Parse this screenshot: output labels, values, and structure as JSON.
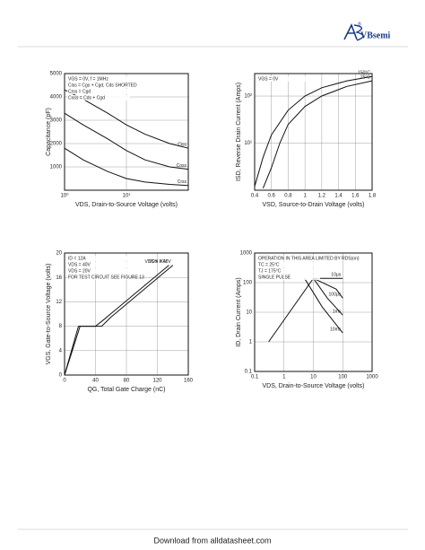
{
  "header": {
    "logo": "VBsemi",
    "mark": "®"
  },
  "footer": "Download from alldatasheet.com",
  "chart_data": [
    {
      "type": "line",
      "x_label": "VDS, Drain-to-Source Voltage (volts)",
      "y_label": "Capacitance (pF)",
      "xlog": true,
      "xlim": [
        1,
        100
      ],
      "xticks": [
        {
          "value": 1,
          "label": "10⁰"
        },
        {
          "value": 10,
          "label": "10¹"
        }
      ],
      "ylim": [
        0,
        5000
      ],
      "yticks": [
        1000,
        2000,
        3000,
        4000,
        5000
      ],
      "grid": true,
      "annotations": [
        "VGS = 0V, f = 1MHz",
        "Ciss = Cgs + Cgd, Cds SHORTED",
        "Crss = Cgd",
        "Coss = Cds + Cgd"
      ],
      "series": [
        {
          "name": "Ciss",
          "color": "#111",
          "x": [
            1,
            2,
            5,
            10,
            20,
            50,
            100
          ],
          "values": [
            4300,
            3900,
            3300,
            2800,
            2400,
            2000,
            1800
          ]
        },
        {
          "name": "Coss",
          "color": "#111",
          "x": [
            1,
            2,
            5,
            10,
            20,
            50,
            100
          ],
          "values": [
            3300,
            2800,
            2200,
            1700,
            1300,
            1000,
            900
          ]
        },
        {
          "name": "Crss",
          "color": "#111",
          "x": [
            1,
            2,
            5,
            10,
            20,
            50,
            100
          ],
          "values": [
            1800,
            1300,
            800,
            500,
            350,
            250,
            200
          ]
        }
      ]
    },
    {
      "type": "line",
      "x_label": "VSD, Source-to-Drain Voltage (volts)",
      "y_label": "ISD, Reverse Drain Current (Amps)",
      "xlim": [
        0.4,
        1.8
      ],
      "xticks": [
        0.4,
        0.6,
        0.8,
        1.0,
        1.2,
        1.4,
        1.6,
        1.8
      ],
      "ylog": true,
      "ylim": [
        1,
        300
      ],
      "yticks": [
        {
          "value": 10,
          "label": "10¹"
        },
        {
          "value": 100,
          "label": "10²"
        }
      ],
      "grid": true,
      "annotations": [
        "VGS = 0V"
      ],
      "series": [
        {
          "name": "150°C",
          "color": "#111",
          "x": [
            0.4,
            0.5,
            0.6,
            0.8,
            1.0,
            1.2,
            1.5,
            1.8
          ],
          "values": [
            1.2,
            5,
            15,
            50,
            100,
            150,
            210,
            260
          ]
        },
        {
          "name": "25°C",
          "color": "#111",
          "x": [
            0.5,
            0.6,
            0.7,
            0.8,
            1.0,
            1.2,
            1.5,
            1.8
          ],
          "values": [
            1.1,
            3,
            10,
            25,
            60,
            100,
            160,
            210
          ]
        }
      ]
    },
    {
      "type": "line",
      "x_label": "QG, Total Gate Charge (nC)",
      "y_label": "VGS, Gate-to-Source Voltage (volts)",
      "xlim": [
        0,
        160
      ],
      "xticks": [
        0,
        40,
        80,
        120,
        160
      ],
      "ylim": [
        0,
        20
      ],
      "yticks": [
        0,
        4,
        8,
        12,
        16,
        20
      ],
      "grid": true,
      "annotations": [
        "ID = 12A",
        "VDS = 40V",
        "VDS = 20V",
        "FOR TEST CIRCUIT SEE FIGURE 13"
      ],
      "series": [
        {
          "name": "VDS = 40V",
          "color": "#111",
          "x": [
            0,
            20,
            48,
            60,
            140
          ],
          "values": [
            0,
            8,
            8,
            9.5,
            18
          ]
        },
        {
          "name": "VDS = 20V",
          "color": "#111",
          "x": [
            0,
            18,
            40,
            50,
            135
          ],
          "values": [
            0,
            8,
            8,
            9,
            18
          ]
        }
      ]
    },
    {
      "type": "line",
      "x_label": "VDS, Drain-to-Source Voltage (volts)",
      "y_label": "ID, Drain Current (Amps)",
      "xlog": true,
      "xlim": [
        0.1,
        1000
      ],
      "xticks": [
        0.1,
        1,
        10,
        100,
        1000
      ],
      "ylog": true,
      "ylim": [
        0.1,
        1000
      ],
      "yticks": [
        0.1,
        1,
        10,
        100,
        1000
      ],
      "grid": true,
      "annotations": [
        "OPERATION IN THIS AREA LIMITED BY RDS(on)",
        "TC = 25°C",
        "TJ = 175°C",
        "SINGLE PULSE"
      ],
      "series": [
        {
          "name": "10μs",
          "color": "#111",
          "x": [
            0.3,
            10,
            100
          ],
          "values": [
            1,
            140,
            140
          ]
        },
        {
          "name": "100μs",
          "color": "#111",
          "x": [
            10,
            60,
            100
          ],
          "values": [
            140,
            60,
            30
          ]
        },
        {
          "name": "1ms",
          "color": "#111",
          "x": [
            10,
            30,
            100
          ],
          "values": [
            140,
            30,
            8
          ]
        },
        {
          "name": "10ms",
          "color": "#111",
          "x": [
            5,
            20,
            100
          ],
          "values": [
            140,
            15,
            2
          ]
        }
      ]
    }
  ]
}
